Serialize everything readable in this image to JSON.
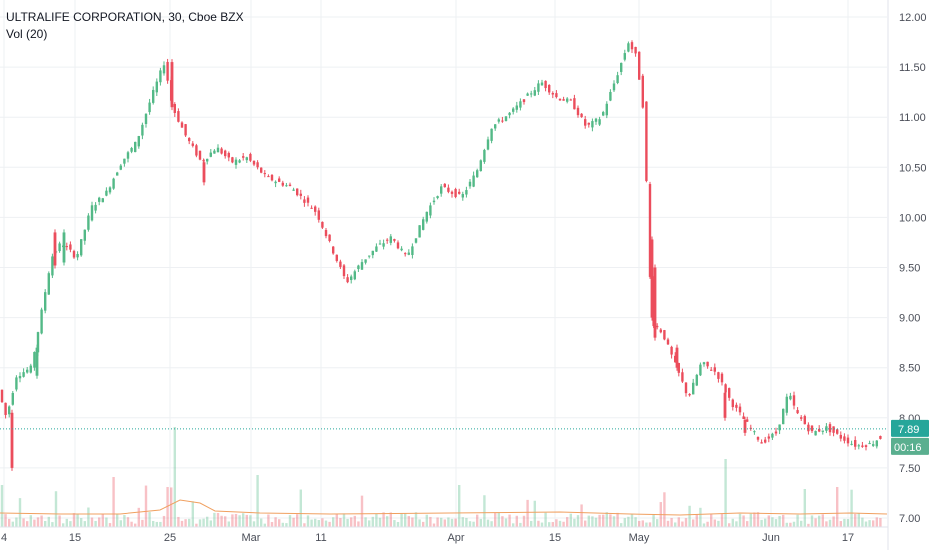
{
  "legend": {
    "symbol": "ULTRALIFE CORPORATION, 30, Cboe BZX",
    "volume": "Vol (20)"
  },
  "colors": {
    "up": "#53b987",
    "down": "#eb4d5c",
    "grid": "#eef0f3",
    "axis_text": "#4a4e58",
    "vol_ma": "#f0a060",
    "last_price_line": "#26a69a"
  },
  "chart_data": {
    "type": "candlestick",
    "title": "ULTRALIFE CORPORATION, 30, Cboe BZX",
    "ylim": [
      7.0,
      12.1
    ],
    "yticks": [
      "12.00",
      "11.50",
      "11.00",
      "10.50",
      "10.00",
      "9.50",
      "9.00",
      "8.50",
      "8.00",
      "7.50",
      "7.00"
    ],
    "xticks": [
      "4",
      "15",
      "25",
      "Mar",
      "11",
      "Apr",
      "15",
      "May",
      "Jun",
      "17"
    ],
    "last_price": "7.89",
    "countdown": "00:16",
    "ohlc_sampled": [
      {
        "x": "4",
        "o": 8.33,
        "h": 8.38,
        "l": 8.3,
        "c": 8.35
      },
      {
        "x": "4",
        "o": 8.05,
        "h": 8.1,
        "l": 7.45,
        "c": 7.5
      },
      {
        "x": "4",
        "o": 8.38,
        "h": 8.45,
        "l": 8.36,
        "c": 8.42
      },
      {
        "x": "15",
        "o": 9.55,
        "h": 9.85,
        "l": 9.5,
        "c": 9.8
      },
      {
        "x": "15",
        "o": 9.55,
        "h": 9.85,
        "l": 9.5,
        "c": 9.52
      },
      {
        "x": "25",
        "o": 11.5,
        "h": 11.62,
        "l": 11.2,
        "c": 11.3
      },
      {
        "x": "25",
        "o": 11.55,
        "h": 11.58,
        "l": 11.05,
        "c": 11.1
      },
      {
        "x": "Mar",
        "o": 10.65,
        "h": 10.75,
        "l": 10.5,
        "c": 10.55
      },
      {
        "x": "11",
        "o": 9.9,
        "h": 9.95,
        "l": 9.55,
        "c": 9.65
      },
      {
        "x": "11",
        "o": 9.45,
        "h": 9.5,
        "l": 9.25,
        "c": 9.3
      },
      {
        "x": "Apr",
        "o": 10.25,
        "h": 10.35,
        "l": 10.15,
        "c": 10.3
      },
      {
        "x": "Apr",
        "o": 10.7,
        "h": 10.95,
        "l": 10.55,
        "c": 10.9
      },
      {
        "x": "15",
        "o": 11.3,
        "h": 11.42,
        "l": 11.1,
        "c": 11.15
      },
      {
        "x": "May",
        "o": 11.5,
        "h": 11.9,
        "l": 11.2,
        "c": 11.65
      },
      {
        "x": "May",
        "o": 10.95,
        "h": 11.0,
        "l": 10.85,
        "c": 10.88
      },
      {
        "x": "May",
        "o": 9.78,
        "h": 9.8,
        "l": 8.8,
        "c": 8.9
      },
      {
        "x": "May",
        "o": 8.7,
        "h": 8.75,
        "l": 8.45,
        "c": 8.5
      },
      {
        "x": "Jun",
        "o": 8.25,
        "h": 8.35,
        "l": 8.0,
        "c": 8.05
      },
      {
        "x": "Jun",
        "o": 8.0,
        "h": 8.05,
        "l": 7.9,
        "c": 7.93
      },
      {
        "x": "17",
        "o": 7.8,
        "h": 7.85,
        "l": 7.7,
        "c": 7.74
      },
      {
        "x": "17",
        "o": 7.7,
        "h": 7.8,
        "l": 7.68,
        "c": 7.78
      }
    ],
    "volume_ma_label": "Vol (20)"
  }
}
